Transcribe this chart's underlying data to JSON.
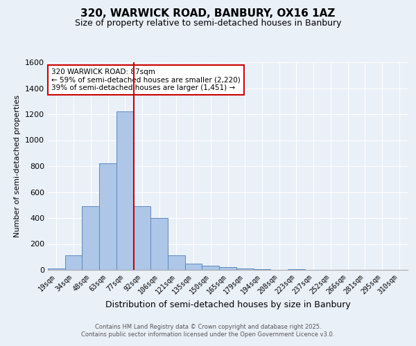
{
  "title_line1": "320, WARWICK ROAD, BANBURY, OX16 1AZ",
  "title_line2": "Size of property relative to semi-detached houses in Banbury",
  "xlabel": "Distribution of semi-detached houses by size in Banbury",
  "ylabel": "Number of semi-detached properties",
  "categories": [
    "19sqm",
    "34sqm",
    "48sqm",
    "63sqm",
    "77sqm",
    "92sqm",
    "106sqm",
    "121sqm",
    "135sqm",
    "150sqm",
    "165sqm",
    "179sqm",
    "194sqm",
    "208sqm",
    "223sqm",
    "237sqm",
    "252sqm",
    "266sqm",
    "281sqm",
    "295sqm",
    "310sqm"
  ],
  "values": [
    10,
    110,
    490,
    820,
    1220,
    490,
    400,
    110,
    50,
    30,
    20,
    12,
    8,
    0,
    3,
    0,
    0,
    0,
    0,
    0,
    0
  ],
  "bar_color": "#aec6e8",
  "bar_edge_color": "#5a8abf",
  "vline_color": "#cc0000",
  "annotation_title": "320 WARWICK ROAD: 87sqm",
  "annotation_line2": "← 59% of semi-detached houses are smaller (2,220)",
  "annotation_line3": "39% of semi-detached houses are larger (1,451) →",
  "annotation_box_color": "#ffffff",
  "annotation_box_edge": "#cc0000",
  "ylim": [
    0,
    1600
  ],
  "yticks": [
    0,
    200,
    400,
    600,
    800,
    1000,
    1200,
    1400,
    1600
  ],
  "background_color": "#eaf0f8",
  "grid_color": "#ffffff",
  "footer_line1": "Contains HM Land Registry data © Crown copyright and database right 2025.",
  "footer_line2": "Contains public sector information licensed under the Open Government Licence v3.0."
}
